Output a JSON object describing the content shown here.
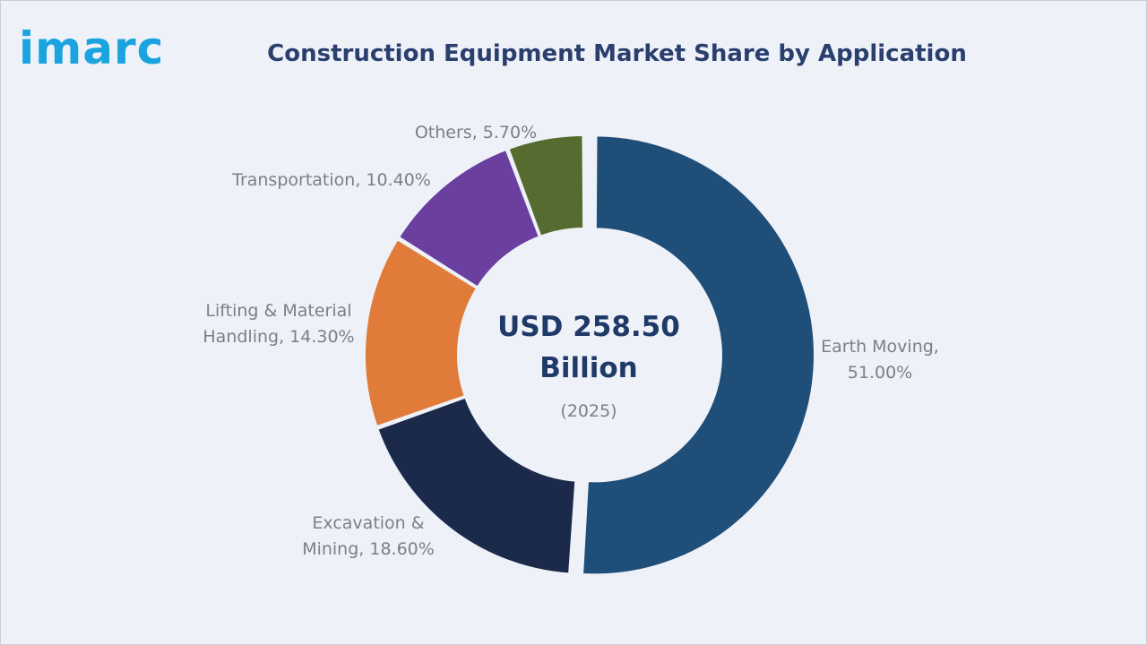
{
  "brand": {
    "logo_text": "imarc"
  },
  "chart_data": {
    "type": "pie",
    "title": "Construction Equipment Market Share by Application",
    "unit": "%",
    "slices": [
      {
        "label": "Earth Moving",
        "label_lines": [
          "Earth Moving,",
          "51.00%"
        ],
        "value": 51.0,
        "color": "#1f4e79"
      },
      {
        "label": "Excavation & Mining",
        "label_lines": [
          "Excavation &",
          "Mining, 18.60%"
        ],
        "value": 18.6,
        "color": "#1b2a4a"
      },
      {
        "label": "Lifting & Material Handling",
        "label_lines": [
          "Lifting & Material",
          "Handling, 14.30%"
        ],
        "value": 14.3,
        "color": "#e07b39"
      },
      {
        "label": "Transportation",
        "label_lines": [
          "Transportation, 10.40%"
        ],
        "value": 10.4,
        "color": "#6b3fa0"
      },
      {
        "label": "Others",
        "label_lines": [
          "Others, 5.70%"
        ],
        "value": 5.7,
        "color": "#556b2f"
      }
    ],
    "center": {
      "value_lines": [
        "USD 258.50",
        "Billion"
      ],
      "year": "(2025)"
    },
    "legend": "none"
  }
}
